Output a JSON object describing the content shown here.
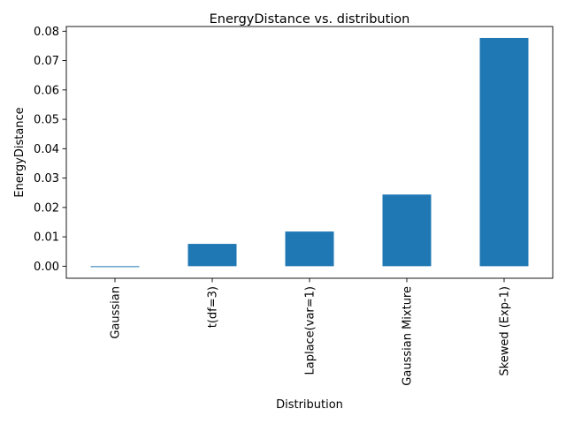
{
  "chart_data": {
    "type": "bar",
    "title": "EnergyDistance vs. distribution",
    "xlabel": "Distribution",
    "ylabel": "EnergyDistance",
    "categories": [
      "Gaussian",
      "t(df=3)",
      "Laplace(var=1)",
      "Gaussian Mixture",
      "Skewed (Exp-1)"
    ],
    "values": [
      -0.0002,
      0.0076,
      0.0118,
      0.0244,
      0.0777
    ],
    "ylim": [
      -0.0041,
      0.0816
    ],
    "yticks": [
      0.0,
      0.01,
      0.02,
      0.03,
      0.04,
      0.05,
      0.06,
      0.07,
      0.08
    ],
    "ytick_labels": [
      "0.00",
      "0.01",
      "0.02",
      "0.03",
      "0.04",
      "0.05",
      "0.06",
      "0.07",
      "0.08"
    ],
    "bar_color": "#1f77b4",
    "grid": false,
    "legend": "none"
  }
}
